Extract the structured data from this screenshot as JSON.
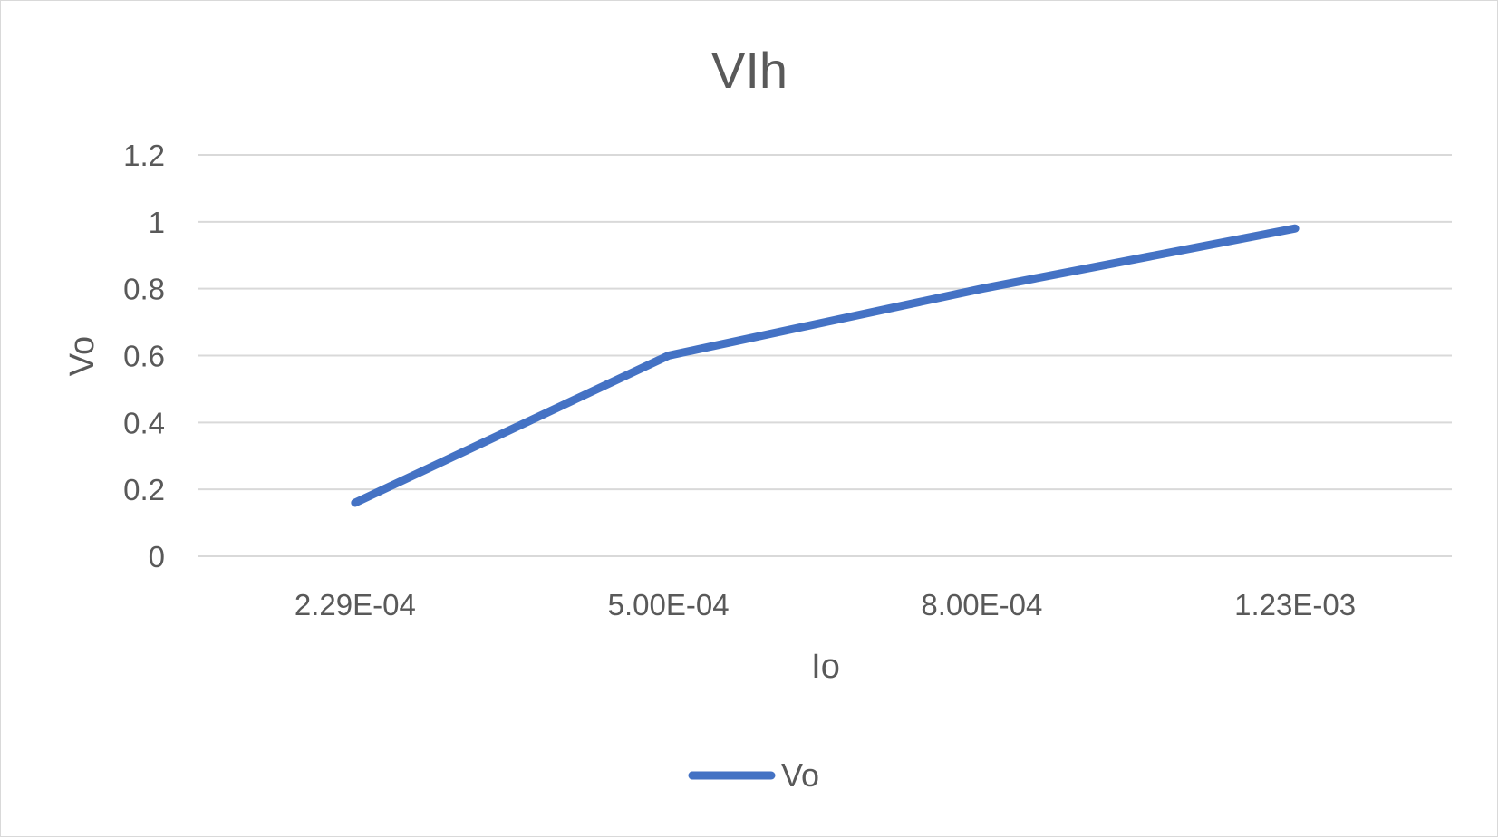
{
  "chart_data": {
    "type": "line",
    "title": "VIh",
    "xlabel": "Io",
    "ylabel": "Vo",
    "categories": [
      "2.29E-04",
      "5.00E-04",
      "8.00E-04",
      "1.23E-03"
    ],
    "series": [
      {
        "name": "Vo",
        "values": [
          0.16,
          0.6,
          0.8,
          0.98
        ],
        "color": "#4472c4"
      }
    ],
    "ylim": [
      0,
      1.2
    ],
    "yticks": [
      "0",
      "0.2",
      "0.4",
      "0.6",
      "0.8",
      "1",
      "1.2"
    ],
    "grid": true,
    "legend_position": "bottom"
  }
}
